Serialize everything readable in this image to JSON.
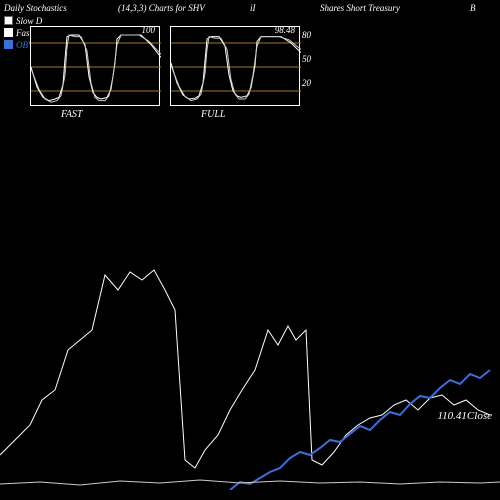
{
  "header": {
    "t1": "Daily Stochastics",
    "t2": "(14,3,3) Charts for SHV",
    "t3": "iI",
    "t4": "Shares Short Treasury",
    "t5": "B"
  },
  "legend": {
    "slowD": {
      "label": "Slow D",
      "swatch_bg": "#ffffff",
      "swatch_border": "#666666"
    },
    "fastK": {
      "label": "Fast K",
      "swatch_bg": "#ffffff",
      "swatch_border": "#000000"
    },
    "obv": {
      "label": "OBV",
      "color": "#3b6fd9"
    }
  },
  "gridline_color": "#a07820",
  "panel_fast": {
    "label": "FAST",
    "value": "100",
    "series_a": [
      [
        0,
        50
      ],
      [
        6,
        25
      ],
      [
        12,
        12
      ],
      [
        18,
        8
      ],
      [
        24,
        10
      ],
      [
        28,
        12
      ],
      [
        32,
        28
      ],
      [
        34,
        60
      ],
      [
        36,
        88
      ],
      [
        40,
        90
      ],
      [
        48,
        90
      ],
      [
        54,
        78
      ],
      [
        58,
        38
      ],
      [
        62,
        18
      ],
      [
        66,
        12
      ],
      [
        70,
        10
      ],
      [
        76,
        12
      ],
      [
        80,
        22
      ],
      [
        84,
        55
      ],
      [
        86,
        85
      ],
      [
        90,
        90
      ],
      [
        100,
        90
      ],
      [
        110,
        90
      ],
      [
        120,
        78
      ],
      [
        130,
        62
      ]
    ],
    "series_b": [
      [
        0,
        48
      ],
      [
        8,
        22
      ],
      [
        14,
        10
      ],
      [
        20,
        6
      ],
      [
        26,
        8
      ],
      [
        30,
        14
      ],
      [
        34,
        40
      ],
      [
        36,
        75
      ],
      [
        38,
        90
      ],
      [
        44,
        88
      ],
      [
        50,
        88
      ],
      [
        56,
        70
      ],
      [
        60,
        30
      ],
      [
        64,
        12
      ],
      [
        68,
        8
      ],
      [
        74,
        8
      ],
      [
        78,
        14
      ],
      [
        82,
        38
      ],
      [
        86,
        78
      ],
      [
        90,
        90
      ],
      [
        98,
        90
      ],
      [
        108,
        90
      ],
      [
        118,
        82
      ],
      [
        130,
        66
      ]
    ]
  },
  "panel_full": {
    "label": "FULL",
    "value": "98.48",
    "series_a": [
      [
        0,
        55
      ],
      [
        6,
        30
      ],
      [
        12,
        15
      ],
      [
        18,
        10
      ],
      [
        24,
        11
      ],
      [
        28,
        14
      ],
      [
        32,
        30
      ],
      [
        34,
        58
      ],
      [
        36,
        85
      ],
      [
        40,
        88
      ],
      [
        48,
        88
      ],
      [
        54,
        76
      ],
      [
        58,
        40
      ],
      [
        62,
        20
      ],
      [
        66,
        14
      ],
      [
        70,
        12
      ],
      [
        76,
        14
      ],
      [
        80,
        24
      ],
      [
        84,
        52
      ],
      [
        86,
        82
      ],
      [
        90,
        88
      ],
      [
        100,
        88
      ],
      [
        110,
        88
      ],
      [
        120,
        80
      ],
      [
        130,
        68
      ]
    ],
    "series_b": [
      [
        0,
        52
      ],
      [
        8,
        26
      ],
      [
        14,
        13
      ],
      [
        20,
        8
      ],
      [
        26,
        10
      ],
      [
        30,
        16
      ],
      [
        34,
        42
      ],
      [
        36,
        72
      ],
      [
        38,
        88
      ],
      [
        44,
        86
      ],
      [
        50,
        86
      ],
      [
        56,
        72
      ],
      [
        60,
        34
      ],
      [
        64,
        16
      ],
      [
        68,
        10
      ],
      [
        74,
        10
      ],
      [
        78,
        16
      ],
      [
        82,
        40
      ],
      [
        86,
        76
      ],
      [
        90,
        88
      ],
      [
        98,
        88
      ],
      [
        108,
        88
      ],
      [
        118,
        84
      ],
      [
        130,
        72
      ]
    ]
  },
  "main": {
    "close_label": "110.41Close",
    "price_series": [
      [
        0,
        255
      ],
      [
        15,
        240
      ],
      [
        30,
        225
      ],
      [
        42,
        200
      ],
      [
        55,
        190
      ],
      [
        68,
        150
      ],
      [
        80,
        140
      ],
      [
        92,
        130
      ],
      [
        105,
        75
      ],
      [
        118,
        90
      ],
      [
        130,
        72
      ],
      [
        142,
        80
      ],
      [
        154,
        70
      ],
      [
        165,
        90
      ],
      [
        175,
        110
      ],
      [
        185,
        260
      ],
      [
        195,
        268
      ],
      [
        205,
        250
      ],
      [
        218,
        235
      ],
      [
        230,
        210
      ],
      [
        242,
        190
      ],
      [
        255,
        170
      ],
      [
        268,
        130
      ],
      [
        278,
        145
      ],
      [
        288,
        126
      ],
      [
        296,
        140
      ],
      [
        306,
        130
      ],
      [
        312,
        260
      ],
      [
        322,
        265
      ],
      [
        334,
        252
      ],
      [
        346,
        235
      ],
      [
        358,
        225
      ],
      [
        370,
        218
      ],
      [
        382,
        215
      ],
      [
        394,
        205
      ],
      [
        406,
        200
      ],
      [
        418,
        210
      ],
      [
        430,
        198
      ],
      [
        442,
        195
      ],
      [
        454,
        205
      ],
      [
        466,
        200
      ],
      [
        478,
        210
      ],
      [
        490,
        215
      ]
    ],
    "obv_series": [
      [
        230,
        290
      ],
      [
        240,
        282
      ],
      [
        250,
        284
      ],
      [
        260,
        278
      ],
      [
        270,
        272
      ],
      [
        280,
        268
      ],
      [
        290,
        258
      ],
      [
        300,
        252
      ],
      [
        310,
        255
      ],
      [
        320,
        248
      ],
      [
        330,
        240
      ],
      [
        340,
        242
      ],
      [
        350,
        234
      ],
      [
        360,
        226
      ],
      [
        370,
        230
      ],
      [
        380,
        220
      ],
      [
        390,
        212
      ],
      [
        400,
        215
      ],
      [
        410,
        204
      ],
      [
        420,
        196
      ],
      [
        430,
        198
      ],
      [
        440,
        188
      ],
      [
        450,
        180
      ],
      [
        460,
        184
      ],
      [
        470,
        174
      ],
      [
        480,
        178
      ],
      [
        490,
        170
      ]
    ],
    "bottom_line": [
      [
        0,
        284
      ],
      [
        40,
        282
      ],
      [
        80,
        285
      ],
      [
        120,
        281
      ],
      [
        160,
        283
      ],
      [
        200,
        280
      ],
      [
        240,
        283
      ],
      [
        280,
        281
      ],
      [
        320,
        283
      ],
      [
        360,
        282
      ],
      [
        400,
        284
      ],
      [
        440,
        282
      ],
      [
        480,
        283
      ],
      [
        500,
        282
      ]
    ]
  },
  "colors": {
    "obv": "#3b6fd9",
    "white": "#ffffff",
    "lightgray": "#cccccc"
  }
}
